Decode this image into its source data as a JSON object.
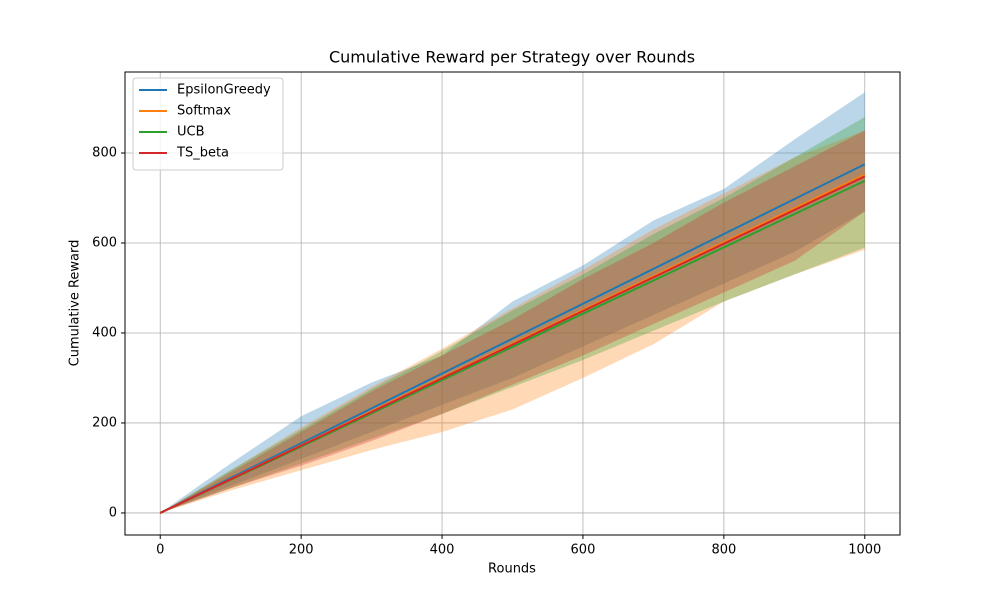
{
  "chart_data": {
    "type": "line",
    "title": "Cumulative Reward per Strategy over Rounds",
    "xlabel": "Rounds",
    "ylabel": "Cumulative Reward",
    "x": [
      0,
      100,
      200,
      300,
      400,
      500,
      600,
      700,
      800,
      900,
      1000
    ],
    "series": [
      {
        "name": "EpsilonGreedy",
        "color": "#1f77b4",
        "values": [
          0,
          77.5,
          155,
          232.5,
          310,
          387.5,
          465,
          542.5,
          620,
          697.5,
          775
        ],
        "lower": [
          0,
          60,
          120,
          180,
          240,
          300,
          370,
          440,
          510,
          580,
          670
        ],
        "upper": [
          0,
          110,
          215,
          290,
          350,
          470,
          550,
          650,
          720,
          830,
          935
        ]
      },
      {
        "name": "Softmax",
        "color": "#ff7f0e",
        "values": [
          0,
          75.2,
          150.4,
          225.6,
          300.8,
          376,
          451.2,
          526.4,
          601.6,
          676.8,
          752
        ],
        "lower": [
          0,
          50,
          95,
          140,
          180,
          230,
          300,
          375,
          470,
          530,
          585
        ],
        "upper": [
          0,
          95,
          190,
          280,
          365,
          455,
          540,
          630,
          710,
          790,
          850
        ]
      },
      {
        "name": "UCB",
        "color": "#2ca02c",
        "values": [
          0,
          73.8,
          147.6,
          221.4,
          295.2,
          369,
          442.8,
          516.6,
          590.4,
          664.2,
          738
        ],
        "lower": [
          0,
          55,
          110,
          165,
          220,
          280,
          340,
          405,
          470,
          530,
          590
        ],
        "upper": [
          0,
          95,
          185,
          275,
          360,
          450,
          530,
          620,
          700,
          790,
          880
        ]
      },
      {
        "name": "TS_beta",
        "color": "#d62728",
        "values": [
          0,
          74.8,
          149.6,
          224.4,
          299.2,
          374,
          448.8,
          523.6,
          598.4,
          673.2,
          748
        ],
        "lower": [
          0,
          55,
          105,
          160,
          220,
          285,
          350,
          420,
          490,
          560,
          670
        ],
        "upper": [
          0,
          90,
          180,
          270,
          350,
          430,
          520,
          600,
          690,
          770,
          850
        ]
      }
    ],
    "xlim": [
      -50,
      1050
    ],
    "ylim": [
      -49,
      980
    ],
    "xticks": [
      0,
      200,
      400,
      600,
      800,
      1000
    ],
    "yticks": [
      0,
      200,
      400,
      600,
      800
    ],
    "grid": true,
    "legend": "upper left",
    "band_opacity": 0.3
  }
}
